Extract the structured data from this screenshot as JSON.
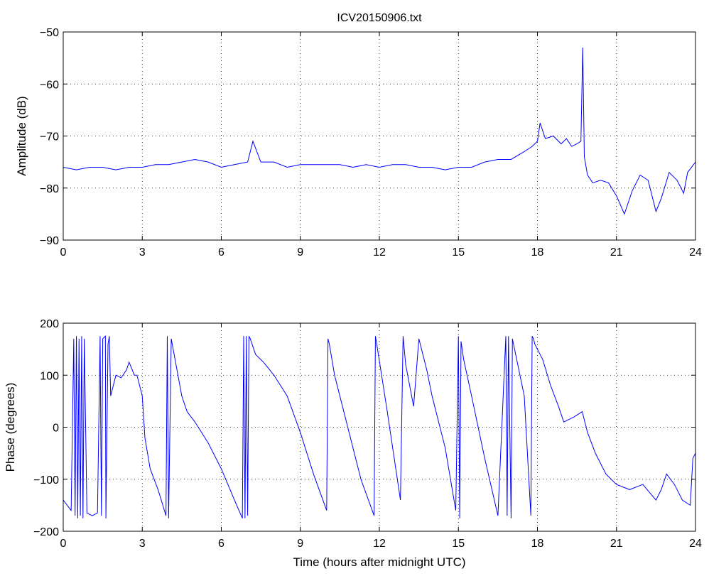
{
  "figure": {
    "title": "ICV20150906.txt"
  },
  "chart_data": [
    {
      "type": "line",
      "title": "ICV20150906.txt",
      "xlabel": "",
      "ylabel": "Amplitude (dB)",
      "xlim": [
        0,
        24
      ],
      "ylim": [
        -90,
        -50
      ],
      "x_ticks": [
        0,
        3,
        6,
        9,
        12,
        15,
        18,
        21,
        24
      ],
      "y_ticks": [
        -90,
        -80,
        -70,
        -60,
        -50
      ],
      "grid": true,
      "color": "#0000ff",
      "series": [
        {
          "x": [
            0,
            0.5,
            1,
            1.5,
            2,
            2.5,
            3,
            3.5,
            4,
            4.5,
            5,
            5.5,
            6,
            6.5,
            7,
            7.2,
            7.5,
            8,
            8.5,
            9,
            9.5,
            10,
            10.5,
            11,
            11.5,
            12,
            12.5,
            13,
            13.5,
            14,
            14.5,
            15,
            15.5,
            16,
            16.5,
            17,
            17.5,
            17.8,
            18,
            18.1,
            18.3,
            18.6,
            18.9,
            19.1,
            19.3,
            19.5,
            19.65,
            19.72,
            19.78,
            19.9,
            20.1,
            20.4,
            20.7,
            21,
            21.3,
            21.6,
            21.9,
            22.2,
            22.5,
            22.7,
            23,
            23.3,
            23.55,
            23.7,
            23.85,
            24
          ],
          "y": [
            -76,
            -76.5,
            -76,
            -76,
            -76.5,
            -76,
            -76,
            -75.5,
            -75.5,
            -75,
            -74.5,
            -75,
            -76,
            -75.5,
            -75,
            -71,
            -75,
            -75,
            -76,
            -75.5,
            -75.5,
            -75.5,
            -75.5,
            -76,
            -75.5,
            -76,
            -75.5,
            -75.5,
            -76,
            -76,
            -76.5,
            -76,
            -76,
            -75,
            -74.5,
            -74.5,
            -73,
            -72,
            -71,
            -67.5,
            -70.5,
            -70,
            -71.5,
            -70.5,
            -72,
            -71.5,
            -71,
            -53,
            -74,
            -77.5,
            -79,
            -78.5,
            -79,
            -81.5,
            -85,
            -80.5,
            -77.5,
            -78.5,
            -84.5,
            -82,
            -77,
            -78.5,
            -81,
            -77,
            -76,
            -75
          ]
        }
      ]
    },
    {
      "type": "line",
      "title": "",
      "xlabel": "Time (hours after midnight UTC)",
      "ylabel": "Phase (degrees)",
      "xlim": [
        0,
        24
      ],
      "ylim": [
        -200,
        200
      ],
      "x_ticks": [
        0,
        3,
        6,
        9,
        12,
        15,
        18,
        21,
        24
      ],
      "y_ticks": [
        -200,
        -100,
        0,
        100,
        200
      ],
      "grid": true,
      "color": "#0000ff",
      "series": [
        {
          "x": [
            0,
            0.3,
            0.4,
            0.45,
            0.5,
            0.55,
            0.6,
            0.65,
            0.7,
            0.75,
            0.8,
            0.9,
            1.1,
            1.3,
            1.4,
            1.45,
            1.5,
            1.6,
            1.62,
            1.7,
            1.75,
            1.8,
            2.0,
            2.2,
            2.4,
            2.5,
            2.7,
            2.8,
            3.0,
            3.1,
            3.3,
            3.6,
            3.9,
            3.95,
            4.0,
            4.1,
            4.5,
            4.7,
            5,
            5.5,
            6,
            6.5,
            6.8,
            6.85,
            6.9,
            6.95,
            7.0,
            7.05,
            7.1,
            7.3,
            7.6,
            8,
            8.5,
            9,
            9.5,
            10,
            10.05,
            10.1,
            10.3,
            10.8,
            11.3,
            11.8,
            11.85,
            11.9,
            12.3,
            12.8,
            12.9,
            13,
            13.3,
            13.5,
            13.8,
            14,
            14.5,
            14.9,
            15,
            15.05,
            15.1,
            15.2,
            15.5,
            16,
            16.5,
            16.8,
            16.85,
            16.9,
            17.0,
            17.05,
            17.5,
            17.75,
            17.8,
            17.85,
            17.9,
            18.2,
            18.5,
            18.8,
            19.0,
            19.4,
            19.7,
            19.9,
            20.2,
            20.6,
            21.0,
            21.5,
            22.0,
            22.5,
            22.7,
            22.9,
            23.2,
            23.5,
            23.8,
            23.9,
            24
          ],
          "y": [
            -140,
            -160,
            170,
            -170,
            175,
            -175,
            170,
            -170,
            175,
            -175,
            170,
            -165,
            -170,
            -165,
            175,
            -170,
            170,
            175,
            -175,
            160,
            175,
            60,
            100,
            95,
            110,
            125,
            100,
            100,
            60,
            -20,
            -80,
            -120,
            -170,
            175,
            -175,
            170,
            60,
            30,
            10,
            -30,
            -80,
            -140,
            -175,
            175,
            -175,
            175,
            -170,
            175,
            170,
            140,
            125,
            100,
            60,
            -10,
            -90,
            -160,
            170,
            160,
            100,
            0,
            -100,
            -170,
            175,
            160,
            30,
            -140,
            175,
            120,
            40,
            170,
            110,
            60,
            -40,
            -160,
            175,
            -175,
            165,
            130,
            60,
            -60,
            -170,
            175,
            -170,
            175,
            -175,
            170,
            60,
            -170,
            175,
            170,
            160,
            130,
            80,
            40,
            10,
            20,
            30,
            -10,
            -50,
            -90,
            -110,
            -120,
            -110,
            -140,
            -120,
            -90,
            -110,
            -140,
            -150,
            -60,
            -50
          ]
        }
      ]
    }
  ]
}
